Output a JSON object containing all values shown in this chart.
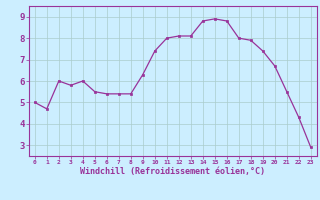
{
  "x": [
    0,
    1,
    2,
    3,
    4,
    5,
    6,
    7,
    8,
    9,
    10,
    11,
    12,
    13,
    14,
    15,
    16,
    17,
    18,
    19,
    20,
    21,
    22,
    23
  ],
  "y": [
    5.0,
    4.7,
    6.0,
    5.8,
    6.0,
    5.5,
    5.4,
    5.4,
    5.4,
    6.3,
    7.4,
    8.0,
    8.1,
    8.1,
    8.8,
    8.9,
    8.8,
    8.0,
    7.9,
    7.4,
    6.7,
    5.5,
    4.3,
    2.9
  ],
  "line_color": "#993399",
  "marker_color": "#993399",
  "bg_color": "#cceeff",
  "grid_color": "#aacccc",
  "xlabel": "Windchill (Refroidissement éolien,°C)",
  "xlabel_color": "#993399",
  "tick_color": "#993399",
  "spine_color": "#993399",
  "ylim": [
    2.5,
    9.5
  ],
  "xlim": [
    -0.5,
    23.5
  ],
  "yticks": [
    3,
    4,
    5,
    6,
    7,
    8,
    9
  ],
  "xticks": [
    0,
    1,
    2,
    3,
    4,
    5,
    6,
    7,
    8,
    9,
    10,
    11,
    12,
    13,
    14,
    15,
    16,
    17,
    18,
    19,
    20,
    21,
    22,
    23
  ],
  "xtick_labels": [
    "0",
    "1",
    "2",
    "3",
    "4",
    "5",
    "6",
    "7",
    "8",
    "9",
    "10",
    "11",
    "12",
    "13",
    "14",
    "15",
    "16",
    "17",
    "18",
    "19",
    "20",
    "21",
    "22",
    "23"
  ]
}
